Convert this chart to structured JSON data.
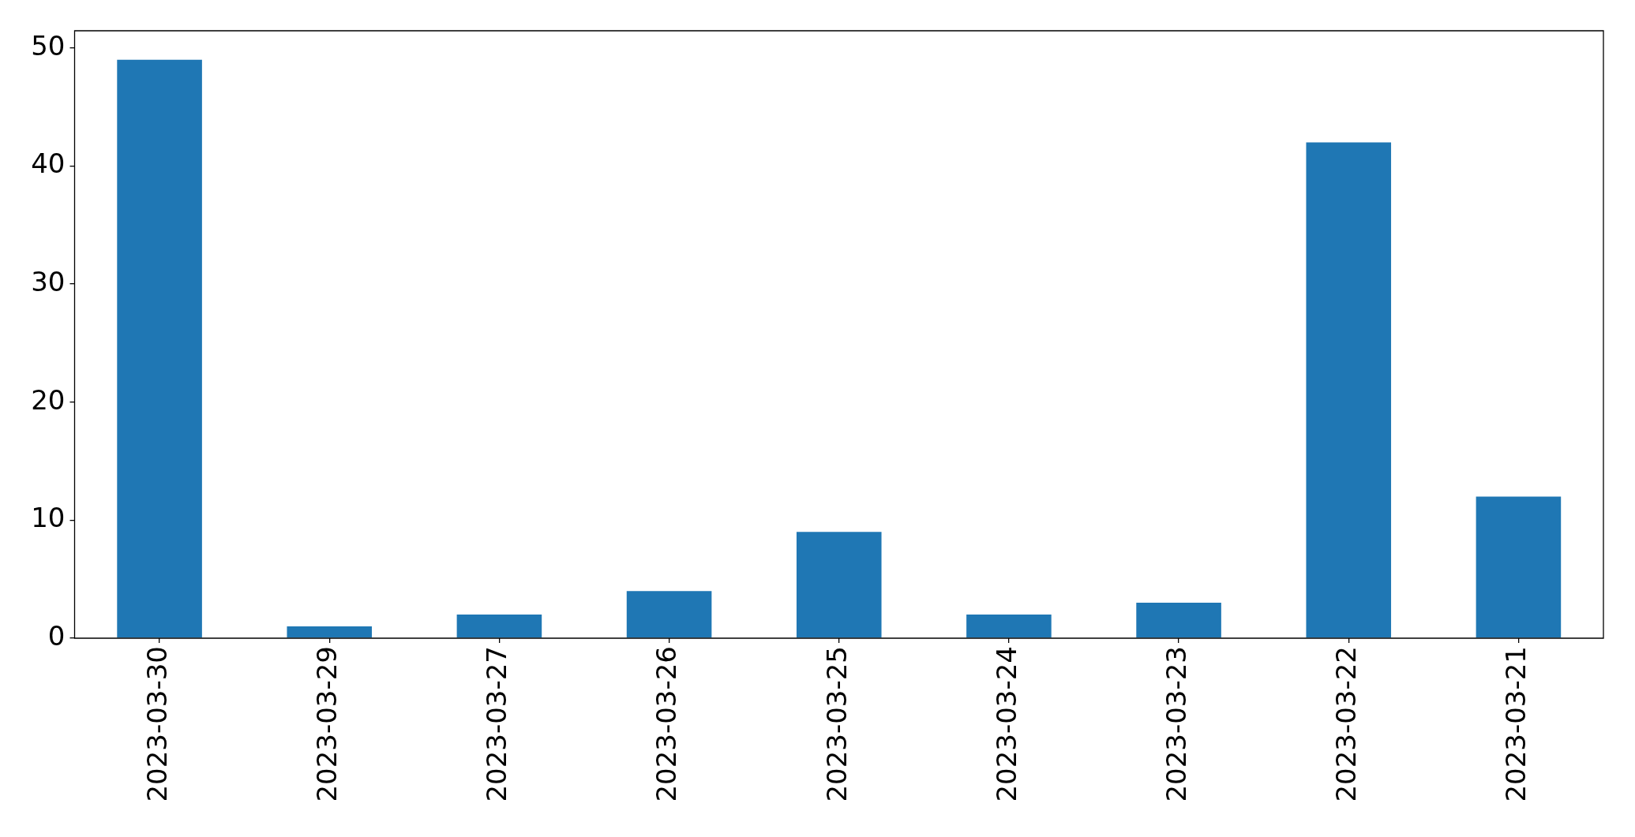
{
  "chart_data": {
    "type": "bar",
    "categories": [
      "2023-03-30",
      "2023-03-29",
      "2023-03-27",
      "2023-03-26",
      "2023-03-25",
      "2023-03-24",
      "2023-03-23",
      "2023-03-22",
      "2023-03-21"
    ],
    "values": [
      49,
      1,
      2,
      4,
      9,
      2,
      3,
      42,
      12
    ],
    "color": "#1f77b4",
    "ylim": [
      0,
      51.45
    ],
    "yticks": [
      0,
      10,
      20,
      30,
      40,
      50
    ]
  }
}
